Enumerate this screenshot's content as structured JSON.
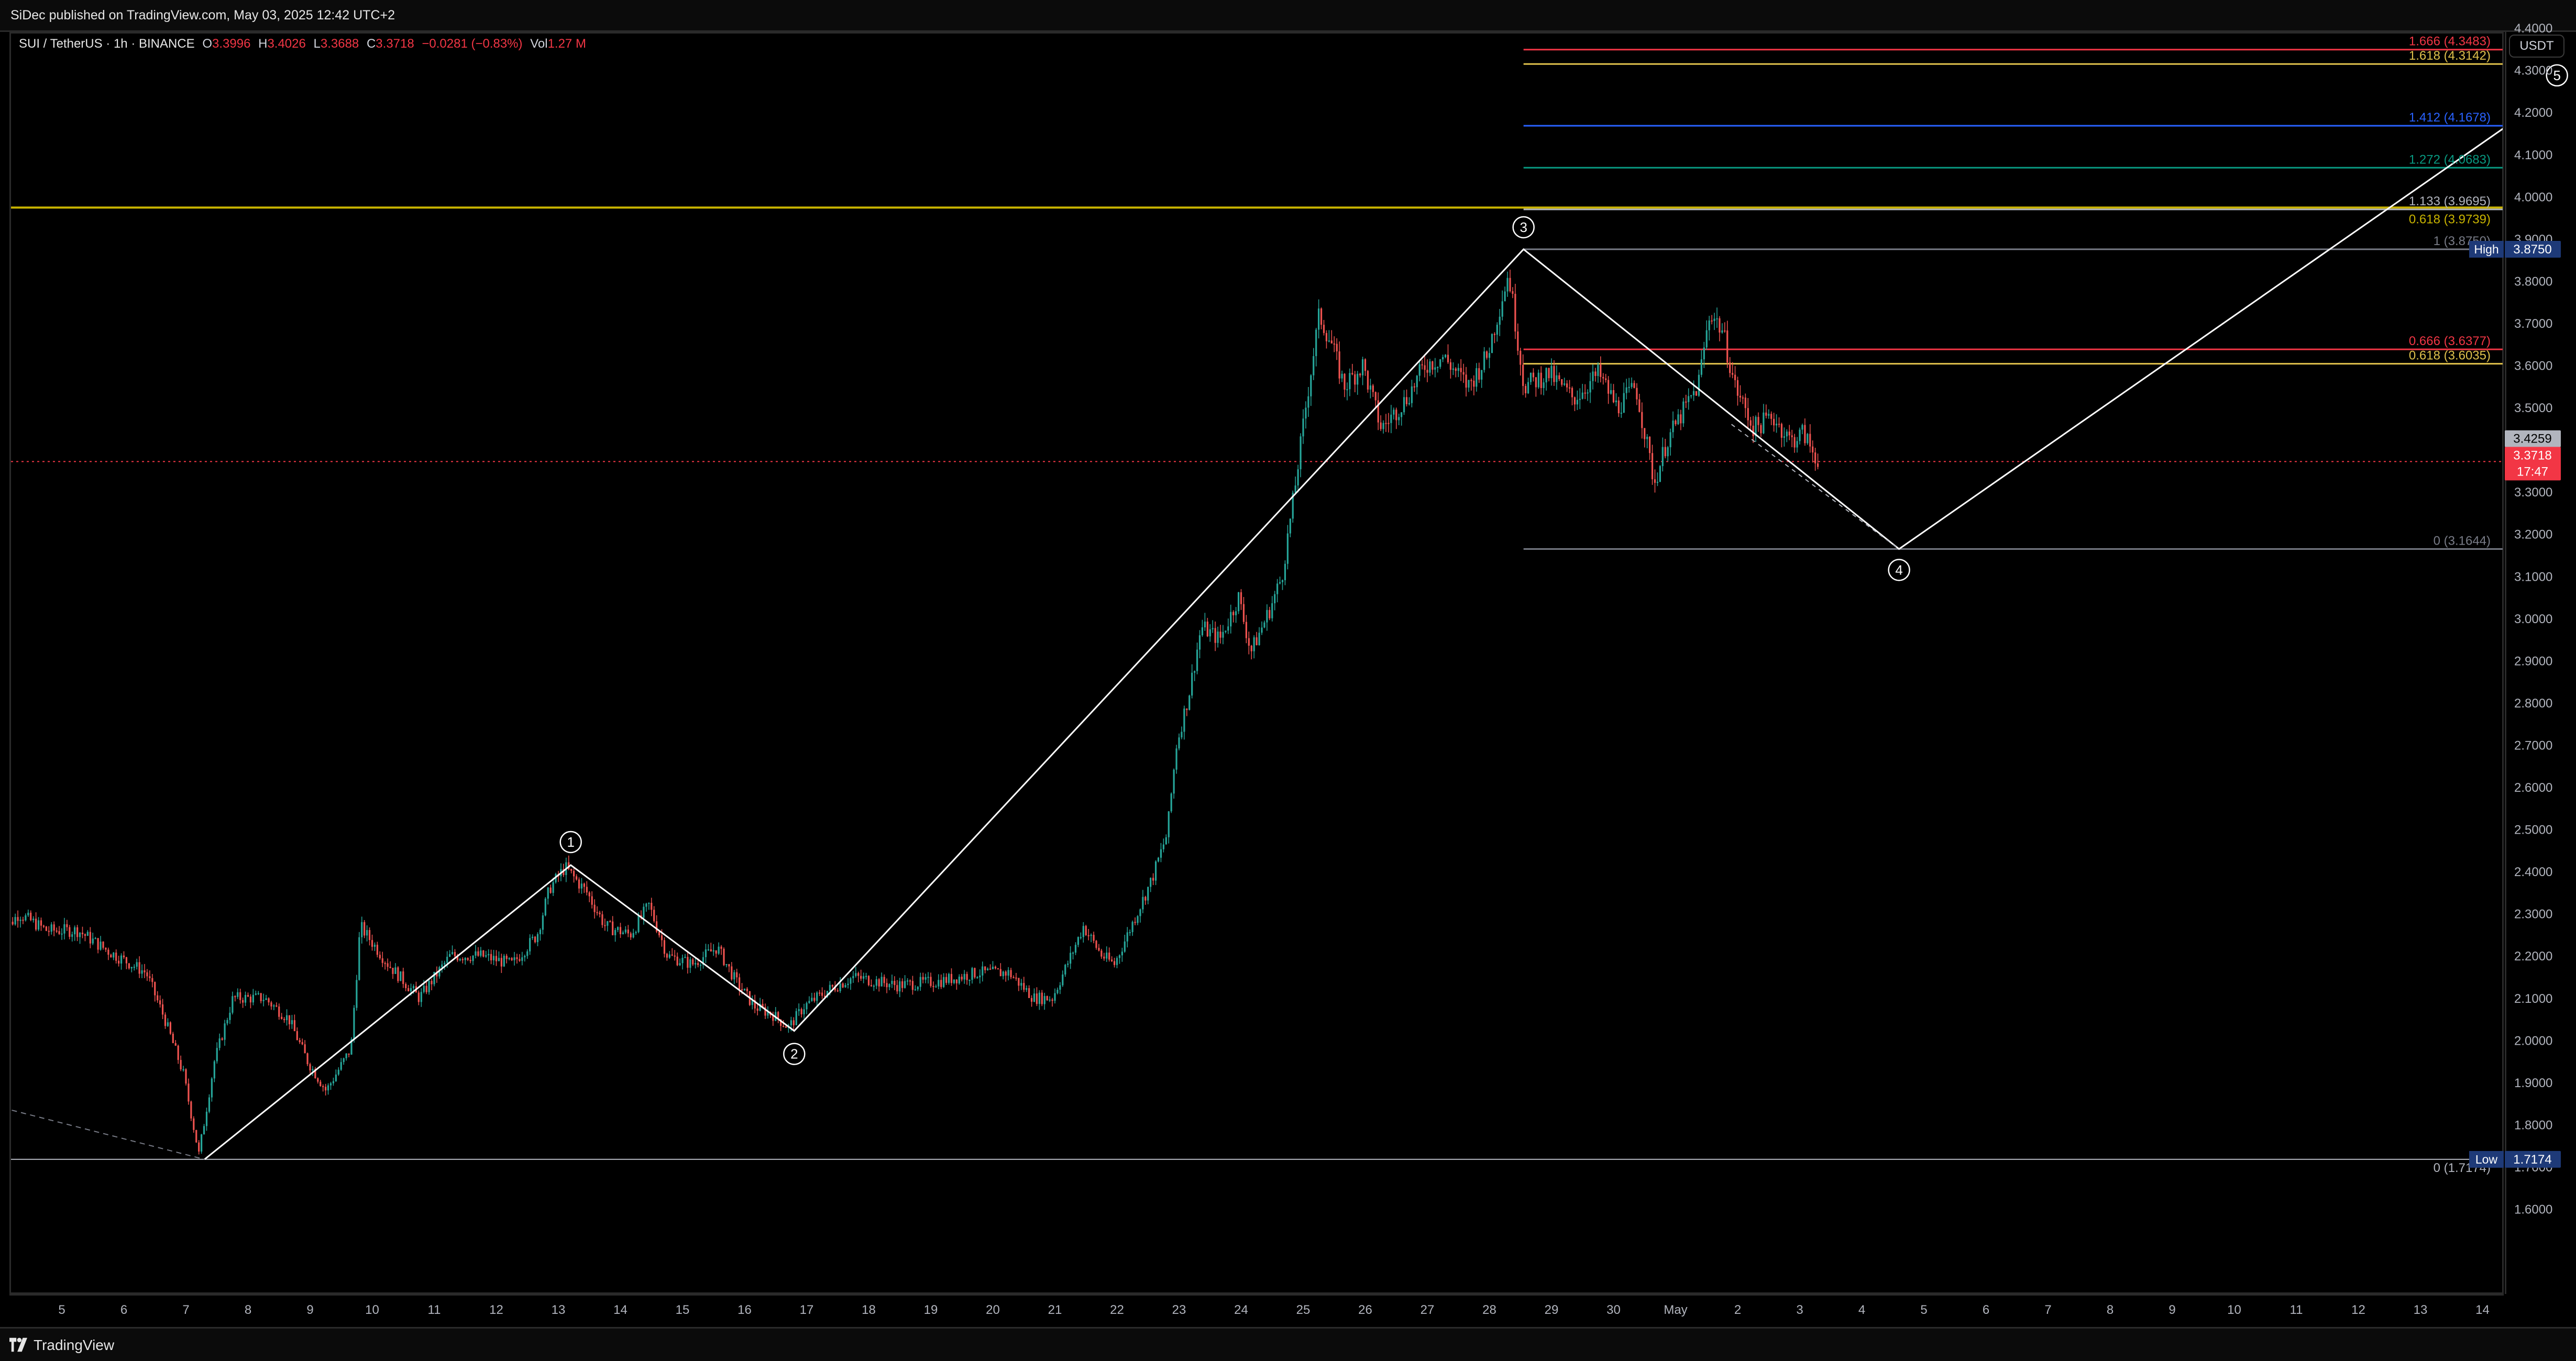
{
  "header": {
    "published_text": "SiDec published on TradingView.com, May 03, 2025 12:42 UTC+2"
  },
  "legend": {
    "symbol": "SUI / TetherUS · 1h · BINANCE",
    "open_label": "O",
    "open": "3.3996",
    "high_label": "H",
    "high": "3.4026",
    "low_label": "L",
    "low": "3.3688",
    "close_label": "C",
    "close": "3.3718",
    "change": "−0.0281 (−0.83%)",
    "vol_label": "Vol",
    "volume": "1.27 M"
  },
  "currency_button": "USDT",
  "footer": {
    "brand": "TradingView"
  },
  "colors": {
    "up": "#26a69a",
    "down": "#ef5350",
    "background": "#000000",
    "wave_line": "#ffffff",
    "resistance_line": "#c9b400"
  },
  "chart_data": {
    "type": "candlestick",
    "symbol": "SUI / TetherUS",
    "timeframe": "1h",
    "exchange": "BINANCE",
    "x_axis_ticks": [
      "5",
      "6",
      "7",
      "8",
      "9",
      "10",
      "11",
      "12",
      "13",
      "14",
      "15",
      "16",
      "17",
      "18",
      "19",
      "20",
      "21",
      "22",
      "23",
      "24",
      "25",
      "26",
      "27",
      "28",
      "29",
      "30",
      "May",
      "2",
      "3",
      "4",
      "5",
      "6",
      "7",
      "8",
      "9",
      "10",
      "11",
      "12",
      "13",
      "14"
    ],
    "y_axis_ticks": [
      "4.4000",
      "4.3000",
      "4.2000",
      "4.1000",
      "4.0000",
      "3.9000",
      "3.8000",
      "3.7000",
      "3.6000",
      "3.5000",
      "3.4000",
      "3.3000",
      "3.2000",
      "3.1000",
      "3.0000",
      "2.9000",
      "2.8000",
      "2.7000",
      "2.6000",
      "2.5000",
      "2.4000",
      "2.3000",
      "2.2000",
      "2.1000",
      "2.0000",
      "1.9000",
      "1.8000",
      "1.7000",
      "1.6000"
    ],
    "price_path": [
      {
        "day": 4.0,
        "price": 2.24
      },
      {
        "day": 4.35,
        "price": 2.3
      },
      {
        "day": 4.8,
        "price": 2.26
      },
      {
        "day": 5.3,
        "price": 2.26
      },
      {
        "day": 5.8,
        "price": 2.21
      },
      {
        "day": 6.4,
        "price": 2.16
      },
      {
        "day": 6.7,
        "price": 2.05
      },
      {
        "day": 7.0,
        "price": 1.92
      },
      {
        "day": 7.25,
        "price": 1.73
      },
      {
        "day": 7.5,
        "price": 1.95
      },
      {
        "day": 7.8,
        "price": 2.1
      },
      {
        "day": 8.3,
        "price": 2.1
      },
      {
        "day": 8.7,
        "price": 2.05
      },
      {
        "day": 9.0,
        "price": 1.95
      },
      {
        "day": 9.3,
        "price": 1.88
      },
      {
        "day": 9.7,
        "price": 1.98
      },
      {
        "day": 9.85,
        "price": 2.27
      },
      {
        "day": 10.3,
        "price": 2.18
      },
      {
        "day": 10.8,
        "price": 2.1
      },
      {
        "day": 11.3,
        "price": 2.2
      },
      {
        "day": 11.8,
        "price": 2.2
      },
      {
        "day": 12.3,
        "price": 2.18
      },
      {
        "day": 12.7,
        "price": 2.25
      },
      {
        "day": 12.9,
        "price": 2.36
      },
      {
        "day": 13.15,
        "price": 2.41
      },
      {
        "day": 13.5,
        "price": 2.35
      },
      {
        "day": 13.8,
        "price": 2.27
      },
      {
        "day": 14.2,
        "price": 2.25
      },
      {
        "day": 14.5,
        "price": 2.32
      },
      {
        "day": 14.8,
        "price": 2.2
      },
      {
        "day": 15.2,
        "price": 2.18
      },
      {
        "day": 15.6,
        "price": 2.22
      },
      {
        "day": 15.9,
        "price": 2.14
      },
      {
        "day": 16.2,
        "price": 2.08
      },
      {
        "day": 16.5,
        "price": 2.06
      },
      {
        "day": 16.75,
        "price": 2.03
      },
      {
        "day": 17.0,
        "price": 2.08
      },
      {
        "day": 17.4,
        "price": 2.12
      },
      {
        "day": 17.8,
        "price": 2.15
      },
      {
        "day": 18.5,
        "price": 2.13
      },
      {
        "day": 19.2,
        "price": 2.14
      },
      {
        "day": 19.8,
        "price": 2.16
      },
      {
        "day": 20.3,
        "price": 2.16
      },
      {
        "day": 20.7,
        "price": 2.1
      },
      {
        "day": 21.0,
        "price": 2.1
      },
      {
        "day": 21.3,
        "price": 2.2
      },
      {
        "day": 21.5,
        "price": 2.27
      },
      {
        "day": 21.8,
        "price": 2.2
      },
      {
        "day": 22.0,
        "price": 2.18
      },
      {
        "day": 22.3,
        "price": 2.28
      },
      {
        "day": 22.6,
        "price": 2.38
      },
      {
        "day": 22.85,
        "price": 2.49
      },
      {
        "day": 23.0,
        "price": 2.7
      },
      {
        "day": 23.2,
        "price": 2.82
      },
      {
        "day": 23.4,
        "price": 2.98
      },
      {
        "day": 23.7,
        "price": 2.95
      },
      {
        "day": 24.0,
        "price": 3.05
      },
      {
        "day": 24.2,
        "price": 2.92
      },
      {
        "day": 24.5,
        "price": 3.02
      },
      {
        "day": 24.7,
        "price": 3.1
      },
      {
        "day": 24.9,
        "price": 3.3
      },
      {
        "day": 25.1,
        "price": 3.52
      },
      {
        "day": 25.3,
        "price": 3.72
      },
      {
        "day": 25.5,
        "price": 3.65
      },
      {
        "day": 25.7,
        "price": 3.55
      },
      {
        "day": 26.0,
        "price": 3.6
      },
      {
        "day": 26.3,
        "price": 3.45
      },
      {
        "day": 26.7,
        "price": 3.52
      },
      {
        "day": 27.0,
        "price": 3.6
      },
      {
        "day": 27.3,
        "price": 3.62
      },
      {
        "day": 27.7,
        "price": 3.55
      },
      {
        "day": 28.0,
        "price": 3.62
      },
      {
        "day": 28.35,
        "price": 3.82
      },
      {
        "day": 28.6,
        "price": 3.55
      },
      {
        "day": 29.0,
        "price": 3.58
      },
      {
        "day": 29.4,
        "price": 3.52
      },
      {
        "day": 29.8,
        "price": 3.58
      },
      {
        "day": 30.1,
        "price": 3.5
      },
      {
        "day": 30.4,
        "price": 3.55
      },
      {
        "day": 30.7,
        "price": 3.32
      },
      {
        "day": 30.9,
        "price": 3.42
      },
      {
        "day": 31.2,
        "price": 3.5
      },
      {
        "day": 31.4,
        "price": 3.55
      },
      {
        "day": 31.6,
        "price": 3.73
      },
      {
        "day": 31.8,
        "price": 3.68
      },
      {
        "day": 32.0,
        "price": 3.55
      },
      {
        "day": 32.3,
        "price": 3.45
      },
      {
        "day": 32.6,
        "price": 3.48
      },
      {
        "day": 32.9,
        "price": 3.42
      },
      {
        "day": 33.1,
        "price": 3.44
      },
      {
        "day": 33.3,
        "price": 3.38
      }
    ],
    "wave_labels": [
      {
        "label": "1",
        "day": 13.2,
        "price": 2.415
      },
      {
        "label": "2",
        "day": 16.8,
        "price": 2.022
      },
      {
        "label": "3",
        "day": 28.55,
        "price": 3.875
      },
      {
        "label": "4",
        "day": 34.6,
        "price": 3.1644
      },
      {
        "label": "5",
        "day": 45.2,
        "price": 4.25
      }
    ],
    "wave_path": [
      {
        "day": 7.3,
        "price": 1.7174
      },
      {
        "day": 13.2,
        "price": 2.415
      },
      {
        "day": 16.8,
        "price": 2.022
      },
      {
        "day": 28.55,
        "price": 3.875
      },
      {
        "day": 34.6,
        "price": 3.1644
      },
      {
        "day": 45.2,
        "price": 4.25
      }
    ],
    "projection_dashed": [
      {
        "day": 3.9,
        "price": 1.845
      },
      {
        "day": 7.3,
        "price": 1.7174
      }
    ],
    "fib_extension_levels": [
      {
        "label": "1.666 (4.3483)",
        "price": 4.3483,
        "color": "#f23645"
      },
      {
        "label": "1.618 (4.3142)",
        "price": 4.3142,
        "color": "#e0c14c"
      },
      {
        "label": "1.412 (4.1678)",
        "price": 4.1678,
        "color": "#2962ff"
      },
      {
        "label": "1.272 (4.0683)",
        "price": 4.0683,
        "color": "#089981"
      },
      {
        "label": "1.133 (3.9695)",
        "price": 3.9695,
        "color": "#b2b5be"
      },
      {
        "label": "1 (3.8750)",
        "price": 3.875,
        "color": "#787b86"
      },
      {
        "label": "0.666 (3.6377)",
        "price": 3.6377,
        "color": "#f23645"
      },
      {
        "label": "0.618 (3.6035)",
        "price": 3.6035,
        "color": "#e0c14c"
      },
      {
        "label": "0 (3.1644)",
        "price": 3.1644,
        "color": "#787b86"
      }
    ],
    "horizontal_lines": [
      {
        "label": "0.618 (3.9739)",
        "price": 3.9739,
        "color": "#c9b400"
      },
      {
        "label": "0 (1.7174)",
        "price": 1.7174,
        "color": "#b2b5be"
      }
    ],
    "current_price_line": {
      "price": 3.3718,
      "color": "#f23645"
    },
    "axis_badges": [
      {
        "name": "High",
        "value": "3.8750",
        "price": 3.875,
        "color": "#1e3a78"
      },
      {
        "name": "",
        "value": "3.4259",
        "price": 3.4259,
        "color": "#b2b5be"
      },
      {
        "name": "",
        "value": "3.3718",
        "sub": "17:47",
        "price": 3.3718,
        "color": "#f23645"
      },
      {
        "name": "Low",
        "value": "1.7174",
        "price": 1.7174,
        "color": "#1e3a78"
      }
    ],
    "ylim": [
      1.55,
      4.48
    ]
  }
}
